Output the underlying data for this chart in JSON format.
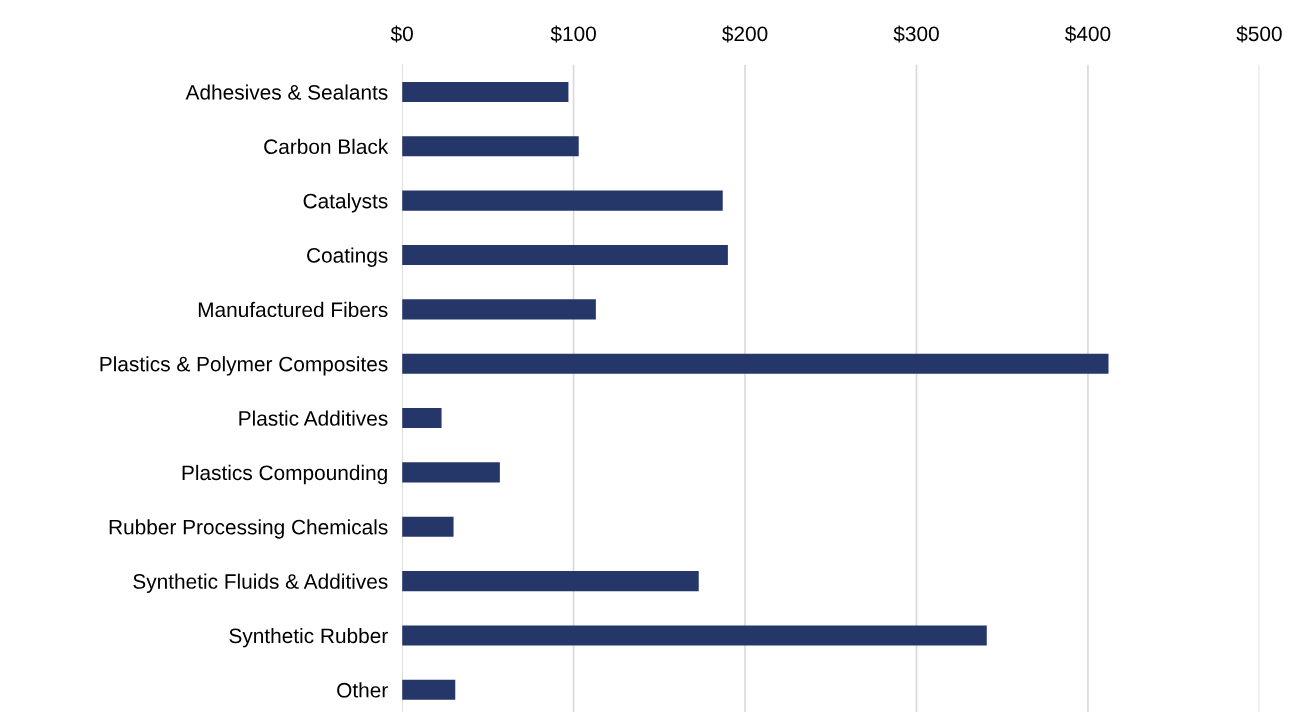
{
  "chart_data": {
    "type": "bar",
    "orientation": "horizontal",
    "categories": [
      "Adhesives & Sealants",
      "Carbon Black",
      "Catalysts",
      "Coatings",
      "Manufactured Fibers",
      "Plastics & Polymer Composites",
      "Plastic Additives",
      "Plastics Compounding",
      "Rubber Processing Chemicals",
      "Synthetic Fluids & Additives",
      "Synthetic Rubber",
      "Other"
    ],
    "values": [
      97,
      103,
      187,
      190,
      113,
      412,
      23,
      57,
      30,
      173,
      341,
      31
    ],
    "color": "#253769",
    "xlim": [
      0,
      500
    ],
    "xticks": [
      {
        "value": 0,
        "label": "$0"
      },
      {
        "value": 100,
        "label": "$100"
      },
      {
        "value": 200,
        "label": "$200"
      },
      {
        "value": 300,
        "label": "$300"
      },
      {
        "value": 400,
        "label": "$400"
      },
      {
        "value": 500,
        "label": "$500"
      }
    ],
    "grid": "x"
  }
}
